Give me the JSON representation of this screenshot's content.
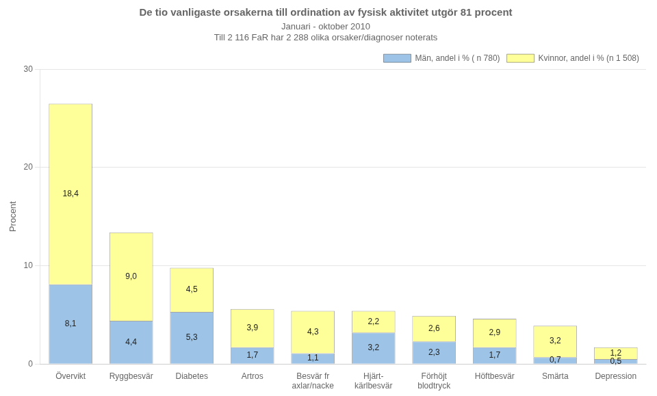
{
  "chart_data": {
    "type": "bar",
    "stacked": true,
    "title": "De tio vanligaste orsakerna till ordination av fysisk aktivitet utgör 81 procent",
    "subtitle": [
      "Januari - oktober 2010",
      "Till 2 116 FaR har 2 288 olika orsaker/diagnoser noterats"
    ],
    "y_label": "Procent",
    "categories": [
      "Övervikt",
      "Ryggbesvär",
      "Diabetes",
      "Artros",
      "Besvär fr\naxlar/nacke",
      "Hjärt-\nkärlbesvär",
      "Förhöjt\nblodtryck",
      "Höftbesvär",
      "Smärta",
      "Depression"
    ],
    "series": [
      {
        "name": "Män, andel i % ( n 780)",
        "color": "#9DC3E6",
        "values": [
          8.1,
          4.4,
          5.3,
          1.7,
          1.1,
          3.2,
          2.3,
          1.7,
          0.7,
          0.5
        ],
        "value_labels": [
          "8,1",
          "4,4",
          "5,3",
          "1,7",
          "1,1",
          "3,2",
          "2,3",
          "1,7",
          "0,7",
          "0,5"
        ]
      },
      {
        "name": "Kvinnor, andel i % (n 1 508)",
        "color": "#FFFF99",
        "values": [
          18.4,
          9.0,
          4.5,
          3.9,
          4.3,
          2.2,
          2.6,
          2.9,
          3.2,
          1.2
        ],
        "value_labels": [
          "18,4",
          "9,0",
          "4,5",
          "3,9",
          "4,3",
          "2,2",
          "2,6",
          "2,9",
          "3,2",
          "1,2"
        ]
      }
    ],
    "ylim": [
      0,
      30
    ],
    "yticks": [
      0,
      10,
      20,
      30
    ],
    "grid": true,
    "legend": "top-right",
    "data_labels": true
  }
}
